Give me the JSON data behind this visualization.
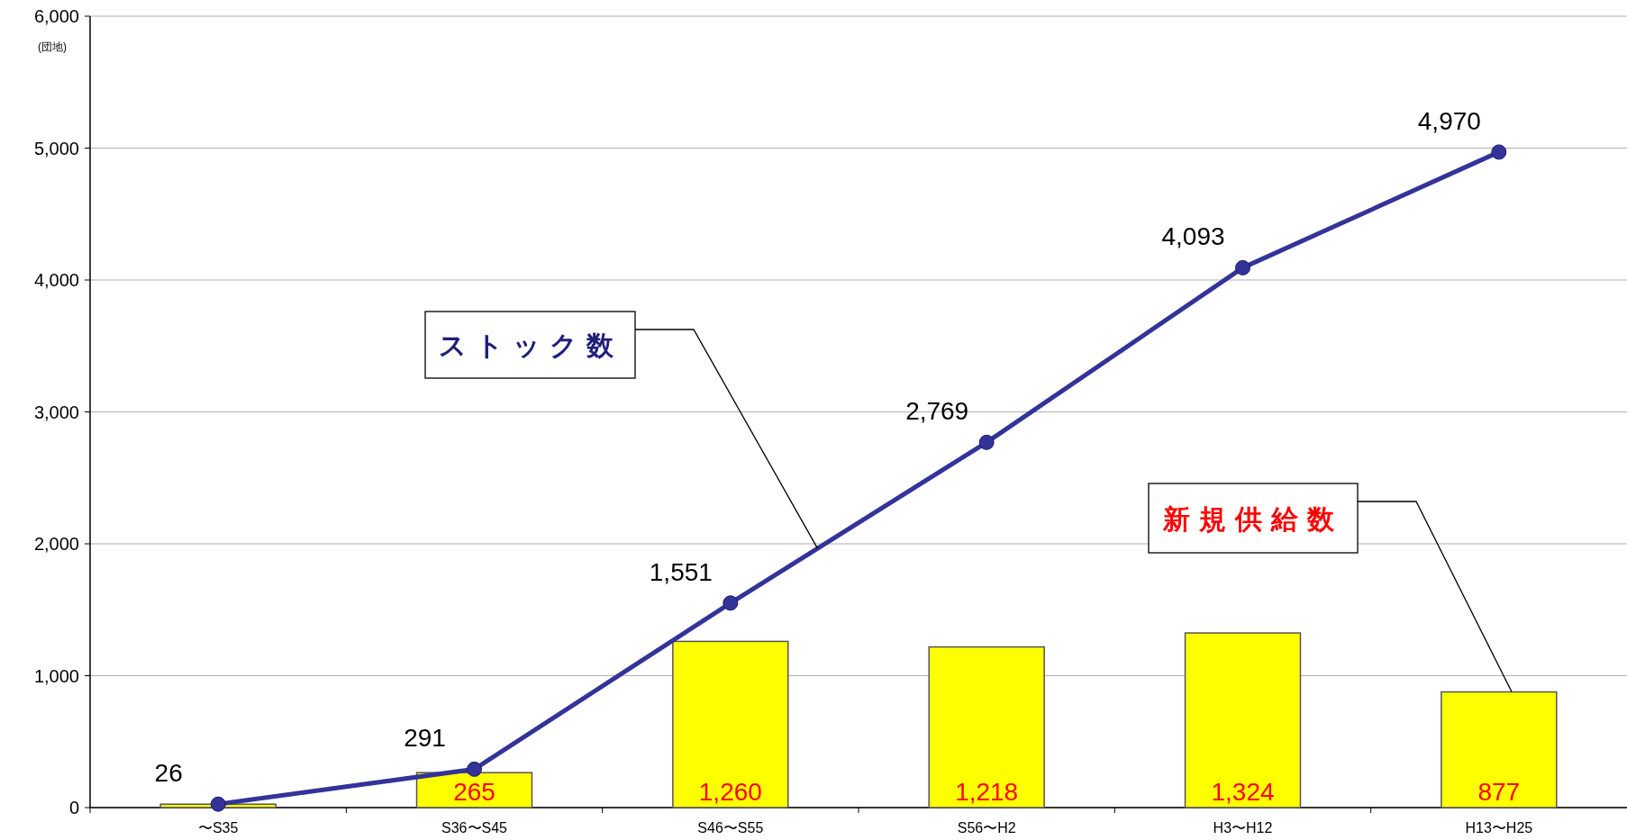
{
  "chart_data": {
    "type": "bar",
    "ylabel": "(団地)",
    "categories": [
      "〜S35",
      "S36〜S45",
      "S46〜S55",
      "S56〜H2",
      "H3〜H12",
      "H13〜H25"
    ],
    "series": [
      {
        "name": "新規供給数",
        "color": "#ffff00",
        "values": [
          26,
          265,
          1260,
          1218,
          1324,
          877
        ],
        "value_labels": [
          null,
          "265",
          "1,260",
          "1,218",
          "1,324",
          "877"
        ]
      },
      {
        "name": "ストック数",
        "type": "line",
        "color": "#333399",
        "values": [
          26,
          291,
          1551,
          2769,
          4093,
          4970
        ],
        "value_labels": [
          "26",
          "291",
          "1,551",
          "2,769",
          "4,093",
          "4,970"
        ]
      }
    ],
    "ylim": [
      0,
      6000
    ],
    "yticks": [
      {
        "value": 0,
        "label": "0"
      },
      {
        "value": 1000,
        "label": "1,000"
      },
      {
        "value": 2000,
        "label": "2,000"
      },
      {
        "value": 3000,
        "label": "3,000"
      },
      {
        "value": 4000,
        "label": "4,000"
      },
      {
        "value": 5000,
        "label": "5,000"
      },
      {
        "value": 6000,
        "label": "6,000"
      }
    ],
    "grid": "y",
    "marker": "circle"
  }
}
